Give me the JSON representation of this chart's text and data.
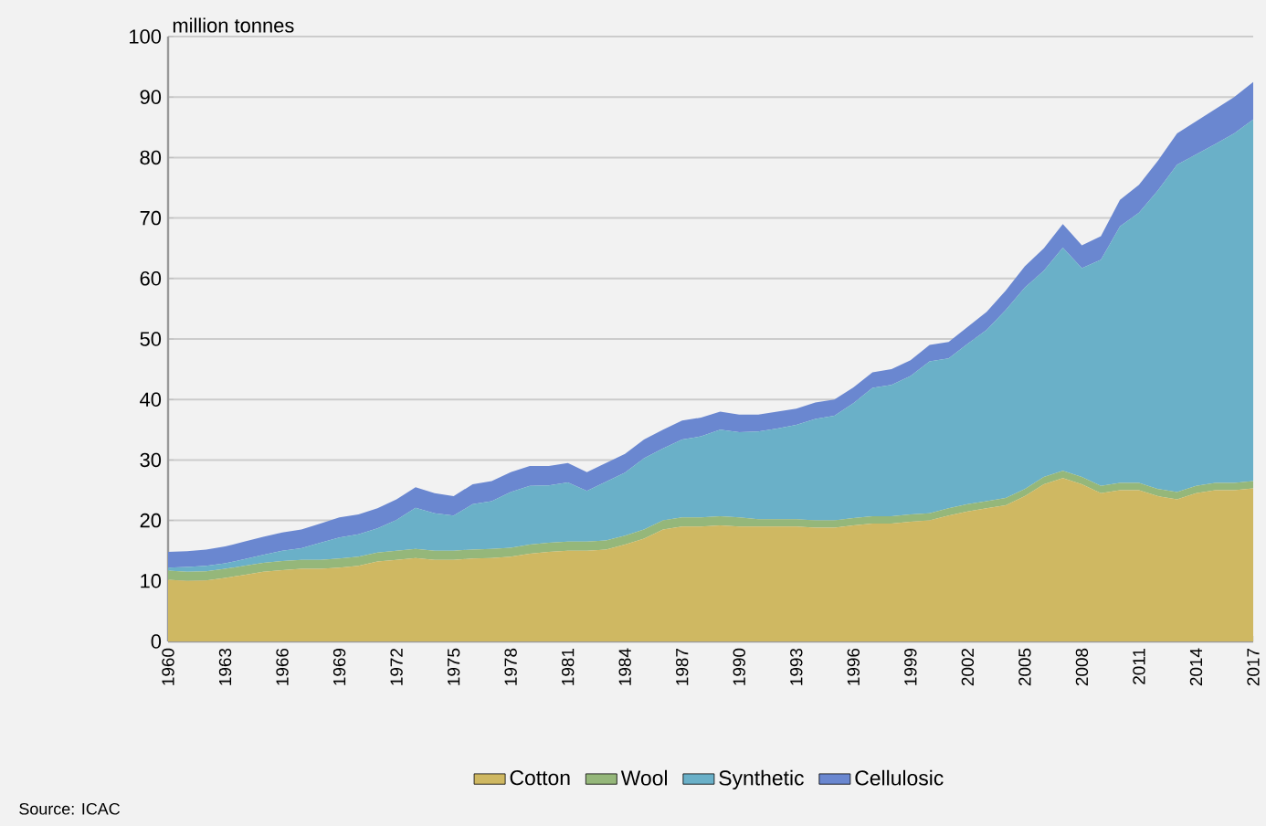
{
  "chart_data": {
    "type": "area",
    "stacked": true,
    "ylabel": "million tonnes",
    "x": [
      1960,
      1961,
      1962,
      1963,
      1964,
      1965,
      1966,
      1967,
      1968,
      1969,
      1970,
      1971,
      1972,
      1973,
      1974,
      1975,
      1976,
      1977,
      1978,
      1979,
      1980,
      1981,
      1982,
      1983,
      1984,
      1985,
      1986,
      1987,
      1988,
      1989,
      1990,
      1991,
      1992,
      1993,
      1994,
      1995,
      1996,
      1997,
      1998,
      1999,
      2000,
      2001,
      2002,
      2003,
      2004,
      2005,
      2006,
      2007,
      2008,
      2009,
      2010,
      2011,
      2012,
      2013,
      2014,
      2015,
      2016,
      2017
    ],
    "series": [
      {
        "name": "Cotton",
        "color": "#cfb862",
        "values": [
          10.2,
          10.0,
          10.1,
          10.5,
          11.0,
          11.5,
          11.8,
          12.0,
          12.0,
          12.2,
          12.5,
          13.2,
          13.5,
          13.8,
          13.5,
          13.5,
          13.7,
          13.8,
          14.0,
          14.5,
          14.8,
          15.0,
          15.0,
          15.2,
          16.0,
          17.0,
          18.5,
          19.0,
          19.0,
          19.2,
          19.0,
          19.0,
          19.0,
          19.0,
          18.8,
          18.8,
          19.2,
          19.5,
          19.5,
          19.8,
          20.0,
          20.8,
          21.5,
          22.0,
          22.5,
          24.0,
          26.0,
          27.0,
          26.0,
          24.5,
          25.0,
          25.0,
          24.0,
          23.5,
          24.5,
          25.0,
          25.0,
          25.3
        ]
      },
      {
        "name": "Wool",
        "color": "#95b77a",
        "values": [
          1.5,
          1.5,
          1.5,
          1.5,
          1.5,
          1.5,
          1.5,
          1.5,
          1.5,
          1.5,
          1.5,
          1.5,
          1.5,
          1.5,
          1.5,
          1.5,
          1.5,
          1.5,
          1.5,
          1.5,
          1.5,
          1.5,
          1.5,
          1.5,
          1.5,
          1.5,
          1.5,
          1.5,
          1.5,
          1.5,
          1.5,
          1.2,
          1.2,
          1.2,
          1.2,
          1.2,
          1.2,
          1.2,
          1.2,
          1.2,
          1.2,
          1.2,
          1.2,
          1.2,
          1.2,
          1.2,
          1.2,
          1.2,
          1.2,
          1.2,
          1.2,
          1.2,
          1.2,
          1.2,
          1.2,
          1.2,
          1.2,
          1.2
        ]
      },
      {
        "name": "Synthetic",
        "color": "#6ab0c8",
        "values": [
          0.5,
          0.8,
          0.9,
          0.9,
          1.1,
          1.3,
          1.7,
          1.9,
          2.8,
          3.5,
          3.7,
          4.0,
          5.1,
          6.8,
          6.2,
          5.8,
          7.5,
          7.9,
          9.2,
          9.7,
          9.5,
          9.8,
          8.4,
          9.7,
          10.4,
          11.8,
          11.9,
          12.9,
          13.4,
          14.3,
          14.1,
          14.5,
          15.0,
          15.6,
          16.8,
          17.3,
          19.0,
          21.2,
          21.7,
          22.9,
          25.1,
          24.8,
          26.5,
          28.3,
          31.1,
          33.3,
          34.1,
          36.9,
          34.5,
          37.4,
          42.4,
          44.7,
          49.4,
          54.1,
          54.8,
          56.0,
          57.8,
          59.8
        ]
      },
      {
        "name": "Cellulosic",
        "color": "#6a87d0",
        "values": [
          2.6,
          2.6,
          2.7,
          2.8,
          2.9,
          3.0,
          3.0,
          3.1,
          3.2,
          3.3,
          3.3,
          3.3,
          3.4,
          3.4,
          3.3,
          3.2,
          3.3,
          3.3,
          3.3,
          3.3,
          3.2,
          3.2,
          3.1,
          3.1,
          3.1,
          3.1,
          3.1,
          3.1,
          3.1,
          3.0,
          2.9,
          2.8,
          2.8,
          2.7,
          2.7,
          2.7,
          2.6,
          2.6,
          2.6,
          2.6,
          2.7,
          2.7,
          2.8,
          3.0,
          3.2,
          3.5,
          3.7,
          3.9,
          3.8,
          3.9,
          4.4,
          4.6,
          4.9,
          5.2,
          5.5,
          5.8,
          6.0,
          6.2
        ]
      }
    ],
    "xlim": [
      1960,
      2017
    ],
    "xticks": [
      1960,
      1963,
      1966,
      1969,
      1972,
      1975,
      1978,
      1981,
      1984,
      1987,
      1990,
      1993,
      1996,
      1999,
      2002,
      2005,
      2008,
      2011,
      2014,
      2017
    ],
    "ylim": [
      0,
      100
    ],
    "yticks": [
      0,
      10,
      20,
      30,
      40,
      50,
      60,
      70,
      80,
      90,
      100
    ],
    "grid": "y",
    "legend": "bottom",
    "annotations": [
      "Source: ICAC"
    ]
  }
}
